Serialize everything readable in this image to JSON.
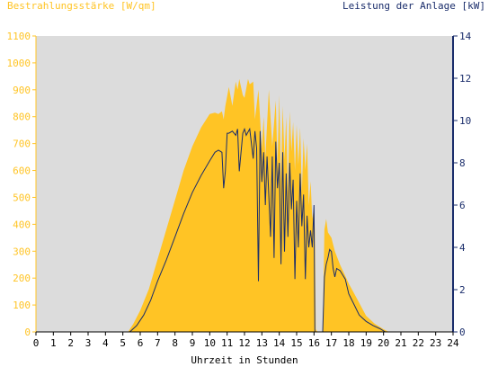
{
  "chart_data": {
    "type": "area",
    "title_left": "Bestrahlungsstärke [W/qm]",
    "title_right": "Leistung der Anlage [kW]",
    "xlabel": "Uhrzeit in Stunden",
    "x_ticks": [
      0,
      1,
      2,
      3,
      4,
      5,
      6,
      7,
      8,
      9,
      10,
      11,
      12,
      13,
      14,
      15,
      16,
      17,
      18,
      19,
      20,
      21,
      22,
      23,
      24
    ],
    "y_left_ticks": [
      0,
      100,
      200,
      300,
      400,
      500,
      600,
      700,
      800,
      900,
      1000,
      1100
    ],
    "y_right_ticks": [
      0,
      2,
      4,
      6,
      8,
      10,
      12,
      14
    ],
    "xlim": [
      0,
      24
    ],
    "ylim_left": [
      0,
      1100
    ],
    "ylim_right": [
      0,
      14
    ],
    "grid": false,
    "series": [
      {
        "axis": "left",
        "render": "area",
        "color": "#ffc425",
        "x": [
          5.3,
          5.6,
          6.0,
          6.5,
          7.0,
          7.5,
          8.0,
          8.5,
          9.0,
          9.5,
          10.0,
          10.3,
          10.5,
          10.7,
          10.8,
          10.9,
          11.1,
          11.3,
          11.5,
          11.6,
          11.7,
          11.9,
          12.0,
          12.2,
          12.3,
          12.5,
          12.6,
          12.8,
          13.0,
          13.1,
          13.2,
          13.4,
          13.6,
          13.8,
          13.9,
          14.0,
          14.1,
          14.2,
          14.3,
          14.4,
          14.5,
          14.6,
          14.7,
          14.8,
          14.9,
          15.0,
          15.1,
          15.2,
          15.3,
          15.4,
          15.5,
          15.6,
          15.7,
          15.8,
          15.9,
          16.0,
          16.05,
          16.1,
          16.2,
          16.3,
          16.5,
          16.6,
          16.7,
          16.8,
          16.9,
          17.0,
          17.2,
          17.5,
          18.0,
          18.5,
          19.0,
          19.5,
          20.0,
          20.3
        ],
        "values": [
          0,
          30,
          80,
          160,
          270,
          380,
          490,
          600,
          690,
          760,
          810,
          815,
          810,
          820,
          790,
          840,
          910,
          840,
          930,
          900,
          940,
          880,
          870,
          940,
          920,
          930,
          790,
          900,
          680,
          800,
          650,
          900,
          690,
          860,
          620,
          880,
          560,
          840,
          640,
          800,
          520,
          820,
          670,
          780,
          600,
          770,
          620,
          760,
          520,
          720,
          600,
          700,
          470,
          560,
          420,
          460,
          380,
          10,
          0,
          0,
          0,
          380,
          420,
          370,
          360,
          350,
          300,
          250,
          180,
          120,
          60,
          30,
          10,
          0
        ]
      },
      {
        "axis": "right",
        "render": "line",
        "color": "#1a2d6b",
        "x": [
          5.4,
          5.8,
          6.2,
          6.6,
          7.0,
          7.5,
          8.0,
          8.5,
          9.0,
          9.5,
          10.0,
          10.3,
          10.5,
          10.7,
          10.8,
          10.9,
          11.0,
          11.1,
          11.3,
          11.5,
          11.6,
          11.7,
          11.9,
          12.0,
          12.1,
          12.3,
          12.5,
          12.6,
          12.7,
          12.8,
          12.9,
          13.0,
          13.1,
          13.2,
          13.3,
          13.4,
          13.5,
          13.6,
          13.7,
          13.8,
          13.9,
          14.0,
          14.1,
          14.2,
          14.3,
          14.4,
          14.5,
          14.6,
          14.7,
          14.8,
          14.9,
          15.0,
          15.1,
          15.2,
          15.3,
          15.4,
          15.5,
          15.6,
          15.7,
          15.8,
          15.9,
          16.0,
          16.05,
          16.1,
          16.2,
          16.5,
          16.6,
          16.7,
          16.8,
          16.9,
          17.0,
          17.1,
          17.2,
          17.3,
          17.5,
          17.8,
          18.0,
          18.3,
          18.6,
          19.0,
          19.4,
          19.8,
          20.1,
          20.4
        ],
        "values": [
          0,
          0.3,
          0.8,
          1.5,
          2.4,
          3.4,
          4.5,
          5.6,
          6.6,
          7.4,
          8.1,
          8.5,
          8.6,
          8.5,
          6.8,
          7.6,
          9.4,
          9.4,
          9.5,
          9.3,
          9.6,
          7.6,
          9.4,
          9.6,
          9.3,
          9.6,
          8.2,
          9.5,
          8.7,
          2.4,
          9.5,
          7.1,
          8.5,
          6.0,
          8.3,
          6.4,
          4.5,
          8.3,
          3.5,
          9.0,
          6.8,
          8.0,
          3.2,
          8.5,
          3.8,
          7.5,
          4.5,
          8.0,
          5.8,
          7.2,
          2.5,
          6.2,
          4.0,
          7.5,
          5.0,
          6.5,
          2.5,
          5.5,
          4.0,
          4.8,
          4.0,
          6.0,
          0,
          0,
          0,
          0,
          2.6,
          3.2,
          3.5,
          3.9,
          3.8,
          3.0,
          2.6,
          3.0,
          2.9,
          2.5,
          1.8,
          1.3,
          0.8,
          0.5,
          0.3,
          0.15,
          0,
          0
        ]
      }
    ]
  },
  "colors": {
    "plot_background": "#dcdcdc",
    "left_axis": "#ffc425",
    "right_axis": "#1a2d6b",
    "x_axis": "#000000"
  }
}
